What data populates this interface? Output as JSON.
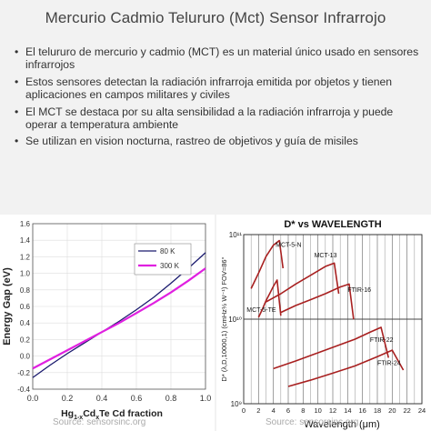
{
  "title": "Mercurio Cadmio Telururo (Mct) Sensor Infrarrojo",
  "bullets": [
    "El telururo de mercurio y cadmio (MCT) es un material único usado en sensores infrarrojos",
    "Estos sensores detectan la radiación infrarroja emitida por objetos y tienen aplicaciones en campos militares y civiles",
    "El MCT se destaca por su alta sensibilidad a la radiación infrarroja y puede operar a temperatura ambiente",
    "Se utilizan en vision nocturna, rastreo de objetivos y guía de misiles"
  ],
  "chart_data": [
    {
      "type": "line",
      "ylabel": "Energy Gap (eV)",
      "xlabel_parts": [
        "Hg",
        "1-x",
        "Cd",
        "x",
        "Te Cd fraction"
      ],
      "xlim": [
        0,
        1
      ],
      "ylim": [
        -0.4,
        1.6
      ],
      "xticks": [
        "0.0",
        "0.2",
        "0.4",
        "0.6",
        "0.8",
        "1.0"
      ],
      "yticks": [
        "-0.4",
        "-0.2",
        "0.0",
        "0.2",
        "0.4",
        "0.6",
        "0.8",
        "1.0",
        "1.2",
        "1.4",
        "1.6"
      ],
      "series": [
        {
          "name": "80 K",
          "color": "#1a1a6e",
          "x": [
            0,
            0.1,
            0.2,
            0.3,
            0.4,
            0.5,
            0.6,
            0.7,
            0.8,
            0.9,
            1.0
          ],
          "y": [
            -0.26,
            -0.11,
            0.03,
            0.16,
            0.29,
            0.42,
            0.56,
            0.71,
            0.88,
            1.06,
            1.25
          ]
        },
        {
          "name": "300 K",
          "color": "#e020e0",
          "x": [
            0,
            0.1,
            0.2,
            0.3,
            0.4,
            0.5,
            0.6,
            0.7,
            0.8,
            0.9,
            1.0
          ],
          "y": [
            -0.15,
            -0.04,
            0.07,
            0.18,
            0.29,
            0.4,
            0.52,
            0.64,
            0.77,
            0.91,
            1.06
          ]
        }
      ],
      "source": "Source: sensorsinc.org"
    },
    {
      "type": "line",
      "title": "D* vs WAVELENGTH",
      "xlabel": "Wavelength (μm)",
      "ylabel": "D* (λ,D,10000,1) (cmHz½ W⁻¹) FOV=86°",
      "xlim": [
        0,
        24
      ],
      "xticks": [
        "0",
        "2",
        "4",
        "6",
        "8",
        "10",
        "12",
        "14",
        "16",
        "18",
        "20",
        "22",
        "24"
      ],
      "yticks": [
        "10¹¹",
        "10¹⁰",
        "10⁹"
      ],
      "log_y": true,
      "ylim": [
        1000000000.0,
        100000000000.0
      ],
      "series": [
        {
          "name": "MCT-5-N",
          "x": [
            1,
            2,
            3,
            4,
            4.8,
            5.3
          ],
          "y": [
            23000000000.0,
            35000000000.0,
            55000000000.0,
            75000000000.0,
            85000000000.0,
            40000000000.0
          ]
        },
        {
          "name": "MCT-13",
          "x": [
            3,
            5,
            7,
            9,
            11,
            12.2,
            12.8
          ],
          "y": [
            16000000000.0,
            20000000000.0,
            26000000000.0,
            33000000000.0,
            42000000000.0,
            46000000000.0,
            20000000000.0
          ]
        },
        {
          "name": "FTIR-16",
          "x": [
            5,
            7,
            9,
            11,
            13,
            14.2,
            14.8
          ],
          "y": [
            12000000000.0,
            14500000000.0,
            17000000000.0,
            20000000000.0,
            24000000000.0,
            26000000000.0,
            10000000000.0
          ]
        },
        {
          "name": "MCT-5-TE",
          "x": [
            2,
            2.5,
            3,
            3.5,
            4,
            4.5,
            5
          ],
          "y": [
            10500000000.0,
            13000000000.0,
            16500000000.0,
            20000000000.0,
            24500000000.0,
            29000000000.0,
            11000000000.0
          ]
        },
        {
          "name": "FTIR-22",
          "x": [
            4,
            7,
            10,
            13,
            15,
            17,
            18.5,
            19.5
          ],
          "y": [
            2600000000.0,
            3200000000.0,
            4000000000.0,
            5000000000.0,
            5800000000.0,
            7000000000.0,
            8000000000.0,
            3500000000.0
          ]
        },
        {
          "name": "FTIR-24",
          "x": [
            6,
            9,
            12,
            15,
            18,
            20,
            21.5
          ],
          "y": [
            1600000000.0,
            1900000000.0,
            2300000000.0,
            2800000000.0,
            3600000000.0,
            4300000000.0,
            2500000000.0
          ]
        }
      ],
      "color": "#a82020",
      "source": "Source: sensorsinc.org"
    }
  ]
}
